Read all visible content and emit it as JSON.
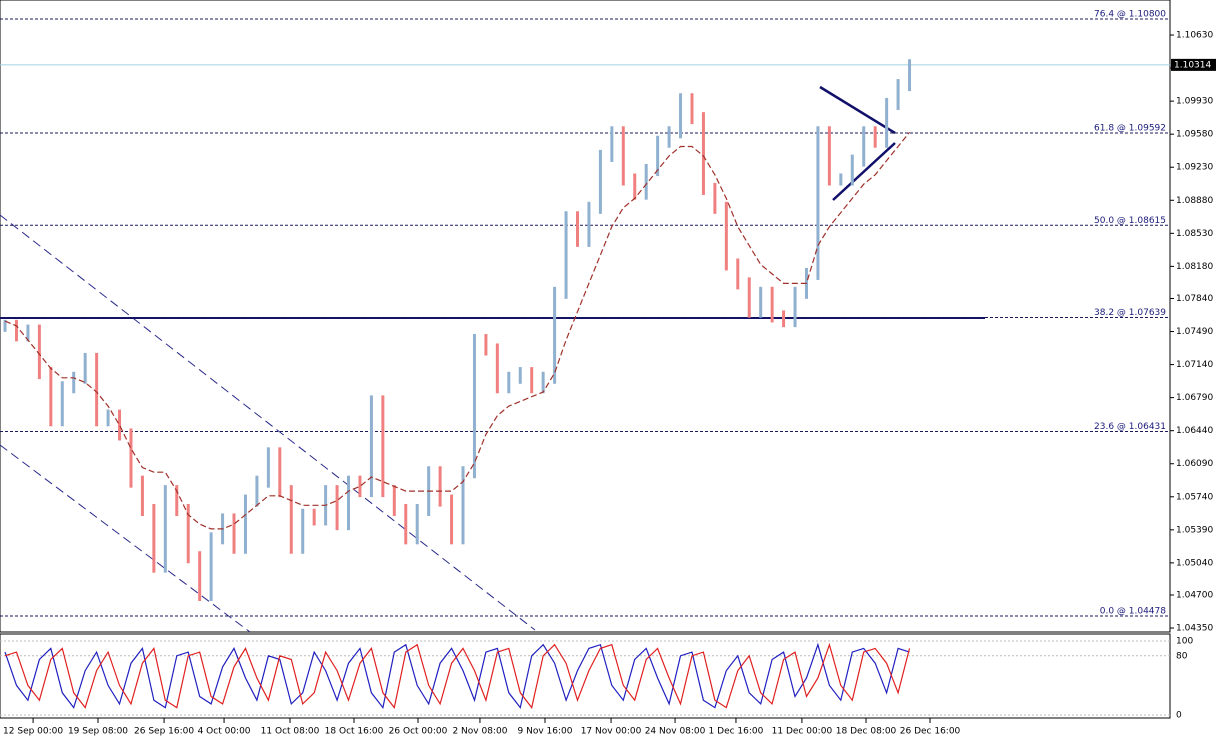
{
  "chart_data": {
    "type": "price-bars",
    "up_color": "#8fb0cf",
    "down_color": "#f08080",
    "ma_color": "#a0302a",
    "xlim": [
      -0.44,
      101.75
    ],
    "ylim": [
      1.04308,
      1.11001
    ],
    "xticks": [
      {
        "value": 2.45,
        "label": "12 Sep 00:00"
      },
      {
        "value": 8.12,
        "label": "19 Sep 08:00"
      },
      {
        "value": 13.89,
        "label": "26 Sep 16:00"
      },
      {
        "value": 19.13,
        "label": "4 Oct 00:00"
      },
      {
        "value": 24.89,
        "label": "11 Oct 08:00"
      },
      {
        "value": 30.48,
        "label": "18 Oct 16:00"
      },
      {
        "value": 36.07,
        "label": "26 Oct 00:00"
      },
      {
        "value": 41.48,
        "label": "2 Nov 08:00"
      },
      {
        "value": 47.16,
        "label": "9 Nov 16:00"
      },
      {
        "value": 52.93,
        "label": "17 Nov 00:00"
      },
      {
        "value": 58.52,
        "label": "24 Nov 08:00"
      },
      {
        "value": 63.84,
        "label": "1 Dec 16:00"
      },
      {
        "value": 69.6,
        "label": "11 Dec 00:00"
      },
      {
        "value": 75.2,
        "label": "18 Dec 08:00"
      },
      {
        "value": 80.79,
        "label": "26 Dec 16:00"
      }
    ],
    "yticks": [
      {
        "value": 1.1063,
        "label": "1.10630"
      },
      {
        "value": 1.1028,
        "label": "1.10280"
      },
      {
        "value": 1.0993,
        "label": "1.09930"
      },
      {
        "value": 1.0958,
        "label": "1.09580"
      },
      {
        "value": 1.0923,
        "label": "1.09230"
      },
      {
        "value": 1.0888,
        "label": "1.08880"
      },
      {
        "value": 1.0853,
        "label": "1.08530"
      },
      {
        "value": 1.0818,
        "label": "1.08180"
      },
      {
        "value": 1.0784,
        "label": "1.07840"
      },
      {
        "value": 1.0749,
        "label": "1.07490"
      },
      {
        "value": 1.0714,
        "label": "1.07140"
      },
      {
        "value": 1.0679,
        "label": "1.06790"
      },
      {
        "value": 1.0644,
        "label": "1.06440"
      },
      {
        "value": 1.0609,
        "label": "1.06090"
      },
      {
        "value": 1.0574,
        "label": "1.05740"
      },
      {
        "value": 1.0539,
        "label": "1.05390"
      },
      {
        "value": 1.0504,
        "label": "1.05040"
      },
      {
        "value": 1.047,
        "label": "1.04700"
      },
      {
        "value": 1.0435,
        "label": "1.04350"
      }
    ],
    "last": {
      "value": 1.10314,
      "label": "1.10314"
    },
    "levels": [
      {
        "value": 1.108,
        "label": "76.4 @ 1.10800"
      },
      {
        "value": 1.09592,
        "label": "61.8 @ 1.09592"
      },
      {
        "value": 1.08615,
        "label": "50.0 @ 1.08615"
      },
      {
        "value": 1.07639,
        "label": "38.2 @ 1.07639"
      },
      {
        "value": 1.06431,
        "label": "23.6 @ 1.06431"
      },
      {
        "value": 1.04478,
        "label": "0.0 @ 1.04478"
      }
    ],
    "values": [
      1.0755,
      1.0745,
      1.075,
      1.0705,
      1.0655,
      1.069,
      1.07,
      1.072,
      1.0655,
      1.066,
      1.064,
      1.059,
      1.056,
      1.05,
      1.058,
      1.056,
      1.051,
      1.047,
      1.053,
      1.055,
      1.052,
      1.057,
      1.059,
      1.062,
      1.058,
      1.052,
      1.0555,
      1.055,
      1.058,
      1.0545,
      1.059,
      1.058,
      1.0675,
      1.058,
      1.056,
      1.053,
      1.056,
      1.06,
      1.057,
      1.053,
      1.06,
      1.074,
      1.073,
      1.069,
      1.07,
      1.0705,
      1.069,
      1.07,
      1.079,
      1.087,
      1.0845,
      1.088,
      1.0935,
      1.096,
      1.091,
      1.0895,
      1.092,
      1.095,
      1.096,
      1.0995,
      1.0975,
      1.09,
      1.088,
      1.082,
      1.08,
      1.077,
      1.079,
      1.0765,
      1.076,
      1.079,
      1.081,
      1.096,
      1.091,
      1.091,
      1.093,
      1.096,
      1.095,
      1.099,
      1.101,
      1.1031
    ],
    "ma": [
      1.076,
      1.0755,
      1.074,
      1.0725,
      1.071,
      1.07,
      1.07,
      1.0695,
      1.0685,
      1.067,
      1.065,
      1.0625,
      1.0605,
      1.06,
      1.06,
      1.058,
      1.0555,
      1.0545,
      1.054,
      1.054,
      1.0545,
      1.0555,
      1.0565,
      1.0575,
      1.0575,
      1.057,
      1.0565,
      1.0565,
      1.0565,
      1.057,
      1.058,
      1.0585,
      1.0595,
      1.059,
      1.0585,
      1.058,
      1.058,
      1.058,
      1.058,
      1.058,
      1.059,
      1.061,
      1.064,
      1.066,
      1.067,
      1.0675,
      1.068,
      1.0685,
      1.0705,
      1.074,
      1.077,
      1.08,
      1.083,
      1.086,
      1.088,
      1.089,
      1.0905,
      1.092,
      1.0935,
      1.0945,
      1.0945,
      1.0935,
      1.0915,
      1.089,
      1.086,
      1.084,
      1.082,
      1.081,
      1.08,
      1.08,
      1.08,
      1.084,
      1.086,
      1.0875,
      1.089,
      1.0905,
      1.0915,
      1.093,
      1.0945,
      1.096
    ],
    "stochastic": {
      "ylim": [
        0,
        100
      ],
      "yticks": [
        100,
        80,
        0
      ],
      "colors": [
        "#2020c0",
        "#e02020"
      ],
      "main": [
        85,
        40,
        20,
        75,
        90,
        30,
        10,
        60,
        85,
        40,
        15,
        70,
        90,
        20,
        10,
        80,
        85,
        25,
        15,
        65,
        90,
        50,
        20,
        80,
        75,
        15,
        30,
        85,
        60,
        20,
        70,
        90,
        30,
        10,
        85,
        95,
        40,
        15,
        70,
        90,
        60,
        20,
        85,
        90,
        30,
        10,
        80,
        95,
        70,
        20,
        60,
        90,
        95,
        40,
        20,
        75,
        90,
        50,
        15,
        80,
        85,
        20,
        10,
        60,
        80,
        30,
        15,
        75,
        85,
        25,
        50,
        95,
        40,
        20,
        85,
        90,
        70,
        30,
        90,
        85
      ],
      "signal": [
        80,
        85,
        40,
        20,
        75,
        90,
        30,
        10,
        60,
        85,
        40,
        15,
        70,
        90,
        20,
        10,
        80,
        85,
        25,
        15,
        65,
        90,
        50,
        20,
        80,
        75,
        15,
        30,
        85,
        60,
        20,
        70,
        90,
        30,
        10,
        85,
        95,
        40,
        15,
        70,
        90,
        60,
        20,
        85,
        90,
        30,
        10,
        80,
        95,
        70,
        20,
        60,
        90,
        95,
        40,
        20,
        75,
        90,
        50,
        15,
        80,
        85,
        20,
        10,
        60,
        80,
        30,
        15,
        75,
        85,
        25,
        50,
        95,
        40,
        20,
        85,
        90,
        70,
        30,
        90
      ]
    }
  }
}
